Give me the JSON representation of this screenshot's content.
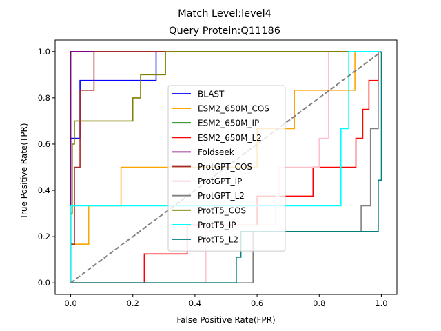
{
  "chart_data": {
    "type": "line",
    "title": "Match Level:level4",
    "subtitle": "Query Protein:Q11186",
    "xlabel": "False Positive Rate(FPR)",
    "ylabel": "True Positive Rate(TPR)",
    "xlim": [
      -0.05,
      1.05
    ],
    "ylim": [
      -0.05,
      1.05
    ],
    "xticks": [
      "0.0",
      "0.2",
      "0.4",
      "0.6",
      "0.8",
      "1.0"
    ],
    "yticks": [
      "0.0",
      "0.2",
      "0.4",
      "0.6",
      "0.8",
      "1.0"
    ],
    "grid": false,
    "legend_position": "center",
    "diagonal": {
      "points": [
        [
          0,
          0
        ],
        [
          1,
          1
        ]
      ],
      "color": "#808080",
      "style": "dashed"
    },
    "series": [
      {
        "name": "BLAST",
        "color": "#0000ff",
        "points": [
          [
            0,
            0
          ],
          [
            0,
            0.625
          ],
          [
            0.03,
            0.625
          ],
          [
            0.03,
            0.875
          ],
          [
            0.275,
            0.875
          ],
          [
            0.275,
            1
          ],
          [
            1,
            1
          ]
        ]
      },
      {
        "name": "ESM2_650M_COS",
        "color": "#ffa500",
        "points": [
          [
            0,
            0
          ],
          [
            0,
            0.167
          ],
          [
            0.058,
            0.167
          ],
          [
            0.058,
            0.333
          ],
          [
            0.162,
            0.333
          ],
          [
            0.162,
            0.5
          ],
          [
            0.6,
            0.5
          ],
          [
            0.6,
            0.667
          ],
          [
            0.72,
            0.667
          ],
          [
            0.72,
            0.833
          ],
          [
            0.915,
            0.833
          ],
          [
            0.915,
            1
          ],
          [
            1,
            1
          ]
        ]
      },
      {
        "name": "ESM2_650M_IP",
        "color": "#008000",
        "points": [
          [
            0,
            0
          ],
          [
            0,
            1
          ],
          [
            1,
            1
          ]
        ]
      },
      {
        "name": "ESM2_650M_L2",
        "color": "#ff0000",
        "points": [
          [
            0,
            0
          ],
          [
            0.237,
            0
          ],
          [
            0.237,
            0.125
          ],
          [
            0.375,
            0.125
          ],
          [
            0.375,
            0.25
          ],
          [
            0.6,
            0.25
          ],
          [
            0.6,
            0.375
          ],
          [
            0.78,
            0.375
          ],
          [
            0.78,
            0.5
          ],
          [
            0.918,
            0.5
          ],
          [
            0.918,
            0.625
          ],
          [
            0.94,
            0.625
          ],
          [
            0.94,
            0.75
          ],
          [
            0.96,
            0.75
          ],
          [
            0.96,
            0.875
          ],
          [
            0.99,
            0.875
          ],
          [
            0.99,
            1
          ],
          [
            1,
            1
          ]
        ]
      },
      {
        "name": "Foldseek",
        "color": "#800080",
        "points": [
          [
            0,
            0
          ],
          [
            0,
            1
          ],
          [
            1,
            1
          ]
        ]
      },
      {
        "name": "ProtGPT_COS",
        "color": "#a52a2a",
        "points": [
          [
            0,
            0
          ],
          [
            0,
            0.167
          ],
          [
            0.012,
            0.167
          ],
          [
            0.012,
            0.5
          ],
          [
            0.03,
            0.5
          ],
          [
            0.03,
            0.833
          ],
          [
            0.075,
            0.833
          ],
          [
            0.075,
            1
          ],
          [
            1,
            1
          ]
        ]
      },
      {
        "name": "ProtGPT_IP",
        "color": "#ffc0cb",
        "points": [
          [
            0,
            0
          ],
          [
            0.435,
            0
          ],
          [
            0.435,
            0.25
          ],
          [
            0.66,
            0.25
          ],
          [
            0.66,
            0.375
          ],
          [
            0.67,
            0.375
          ],
          [
            0.67,
            0.5
          ],
          [
            0.8,
            0.5
          ],
          [
            0.8,
            0.625
          ],
          [
            0.83,
            0.625
          ],
          [
            0.83,
            0.75
          ],
          [
            0.83,
            0.83
          ],
          [
            0.83,
            1
          ],
          [
            1,
            1
          ]
        ]
      },
      {
        "name": "ProtGPT_L2",
        "color": "#808080",
        "points": [
          [
            0,
            0
          ],
          [
            0.587,
            0
          ],
          [
            0.587,
            0.222
          ],
          [
            0.935,
            0.222
          ],
          [
            0.935,
            0.333
          ],
          [
            0.965,
            0.333
          ],
          [
            0.965,
            0.667
          ],
          [
            0.99,
            0.667
          ],
          [
            0.99,
            1
          ],
          [
            1,
            1
          ]
        ]
      },
      {
        "name": "ProtT5_COS",
        "color": "#808000",
        "points": [
          [
            0,
            0
          ],
          [
            0,
            0.3
          ],
          [
            0.005,
            0.3
          ],
          [
            0.005,
            0.6
          ],
          [
            0.012,
            0.6
          ],
          [
            0.012,
            0.7
          ],
          [
            0.2,
            0.7
          ],
          [
            0.2,
            0.8
          ],
          [
            0.225,
            0.8
          ],
          [
            0.225,
            0.9
          ],
          [
            0.305,
            0.9
          ],
          [
            0.305,
            1
          ],
          [
            1,
            1
          ]
        ]
      },
      {
        "name": "ProtT5_IP",
        "color": "#00ffff",
        "points": [
          [
            0,
            0
          ],
          [
            0,
            0.333
          ],
          [
            0.87,
            0.333
          ],
          [
            0.87,
            0.667
          ],
          [
            0.895,
            0.667
          ],
          [
            0.895,
            1
          ],
          [
            1,
            1
          ]
        ]
      },
      {
        "name": "ProtT5_L2",
        "color": "#008080",
        "points": [
          [
            0,
            0
          ],
          [
            0.533,
            0
          ],
          [
            0.533,
            0.111
          ],
          [
            0.548,
            0.111
          ],
          [
            0.548,
            0.222
          ],
          [
            0.99,
            0.222
          ],
          [
            0.99,
            0.444
          ],
          [
            1,
            0.444
          ],
          [
            1,
            1
          ]
        ]
      }
    ]
  }
}
